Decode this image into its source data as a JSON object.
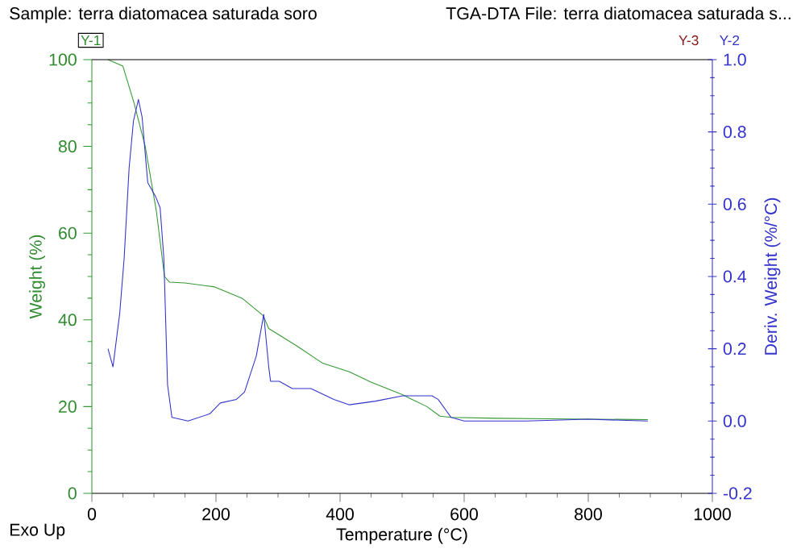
{
  "chart_data": {
    "type": "line",
    "title": "Sample: terra diatomacea saturada soro",
    "subtitle": "TGA-DTA File: terra diatomacea saturada s...",
    "xlabel": "Temperature (°C)",
    "ylabel": "Weight (%)",
    "y2label": "Deriv. Weight (%/°C)",
    "annotations": [
      "Y-1",
      "Y-3",
      "Y-2",
      "Exo Up"
    ],
    "xlim": [
      0,
      1000
    ],
    "xticks": [
      0,
      200,
      400,
      600,
      800,
      1000
    ],
    "ylim": [
      0,
      100
    ],
    "yticks": [
      0,
      20,
      40,
      60,
      80,
      100
    ],
    "y2lim": [
      -0.2,
      1.0
    ],
    "y2ticks": [
      {
        "value": -0.2,
        "label": "-0.2"
      },
      {
        "value": 0,
        "label": "0.0"
      },
      {
        "value": 0.2,
        "label": "0.2"
      },
      {
        "value": 0.4,
        "label": "0.4"
      },
      {
        "value": 0.6,
        "label": "0.6"
      },
      {
        "value": 0.8,
        "label": "0.8"
      },
      {
        "value": 1.0,
        "label": "1.0"
      }
    ],
    "grid": false,
    "marker": "none",
    "line_style": "solid",
    "series": [
      {
        "color": "#339933",
        "axis": "y",
        "x": [
          26,
          50,
          68,
          86,
          104,
          117,
          125,
          150,
          198,
          242,
          276,
          285,
          330,
          372,
          415,
          449,
          501,
          540,
          561,
          579,
          650,
          735,
          800,
          896
        ],
        "values": [
          100,
          98.5,
          90,
          80,
          65,
          50,
          48.7,
          48.5,
          47.6,
          45,
          41,
          38,
          34,
          30,
          28,
          25.7,
          22.7,
          20,
          17.8,
          17.5,
          17.3,
          17.2,
          null,
          17.0
        ]
      },
      {
        "color": "#3333cc",
        "axis": "y2",
        "x": [
          26,
          34,
          45,
          52,
          60,
          67,
          75,
          81,
          90,
          103,
          110,
          116,
          122,
          129,
          155,
          190,
          207,
          233,
          246,
          265,
          277,
          285,
          288,
          302,
          323,
          337,
          353,
          390,
          415,
          457,
          501,
          548,
          558,
          579,
          600,
          700,
          800,
          896
        ],
        "values": [
          0.2,
          0.15,
          0.3,
          0.45,
          0.7,
          0.83,
          0.89,
          0.84,
          0.66,
          0.62,
          0.59,
          0.45,
          0.1,
          0.01,
          0.0,
          0.02,
          0.05,
          0.06,
          0.08,
          0.18,
          0.295,
          0.15,
          0.11,
          0.11,
          0.09,
          0.09,
          0.09,
          0.06,
          0.045,
          0.055,
          0.07,
          0.07,
          0.06,
          0.01,
          0.0,
          0.0,
          0.005,
          0.0
        ]
      }
    ]
  }
}
